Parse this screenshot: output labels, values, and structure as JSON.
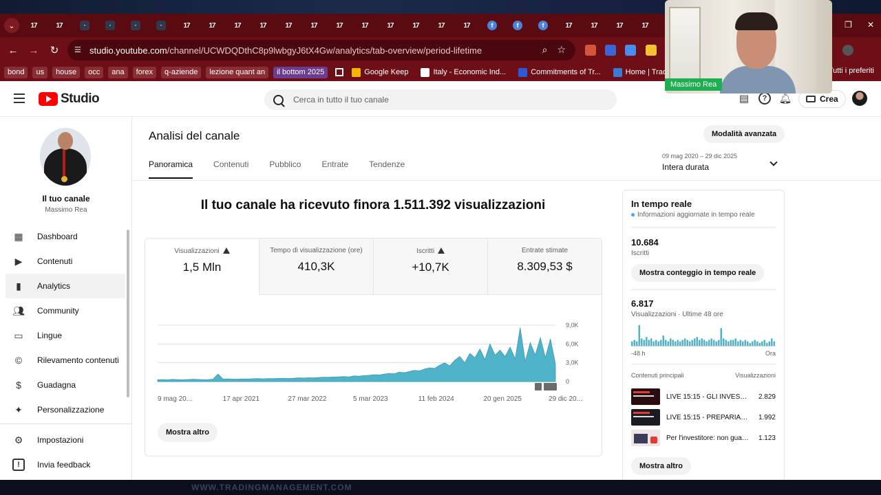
{
  "browser": {
    "url_host": "studio.youtube.com",
    "url_path": "/channel/UCWDQDthC8p9lwbgyJ6tX4Gw/analytics/tab-overview/period-lifetime",
    "bookmarks": [
      "bond",
      "us",
      "house",
      "occ",
      "ana",
      "forex",
      "q-aziende",
      "lezione quant an",
      "il bottom 2025"
    ],
    "bookmark_sites": [
      "Google Keep",
      "Italy - Economic Ind...",
      "Commitments of Tr...",
      "Home | Tradingman..."
    ],
    "bookmarks_all": "Tutti i preferiti",
    "tab_icons": [
      "tv",
      "tv",
      "an",
      "an",
      "an",
      "an",
      "tv",
      "tv",
      "tv",
      "tv",
      "tv",
      "tv",
      "tv",
      "tv",
      "tv",
      "tv",
      "tv",
      "tv",
      "fb",
      "fb",
      "fb",
      "tv",
      "tv",
      "tv",
      "tv"
    ]
  },
  "header": {
    "logo_text": "Studio",
    "search_placeholder": "Cerca in tutto il tuo canale",
    "create_label": "Crea"
  },
  "sidebar": {
    "channel_title": "Il tuo canale",
    "channel_name": "Massimo Rea",
    "items": [
      {
        "label": "Dashboard",
        "icon": "dashboard-icon"
      },
      {
        "label": "Contenuti",
        "icon": "content-icon"
      },
      {
        "label": "Analytics",
        "icon": "analytics-icon"
      },
      {
        "label": "Community",
        "icon": "community-icon"
      },
      {
        "label": "Lingue",
        "icon": "subtitles-icon"
      },
      {
        "label": "Rilevamento contenuti",
        "icon": "copyright-icon"
      },
      {
        "label": "Guadagna",
        "icon": "dollar-icon"
      },
      {
        "label": "Personalizzazione",
        "icon": "magic-wand-icon"
      }
    ],
    "footer_items": [
      {
        "label": "Impostazioni",
        "icon": "gear-icon"
      },
      {
        "label": "Invia feedback",
        "icon": "feedback-icon"
      }
    ]
  },
  "main": {
    "title": "Analisi del canale",
    "advanced_mode": "Modalità avanzata",
    "tabs": [
      "Panoramica",
      "Contenuti",
      "Pubblico",
      "Entrate",
      "Tendenze"
    ],
    "period_dates": "09 mag 2020 – 29 dic 2025",
    "period_name": "Intera durata",
    "headline": "Il tuo canale ha ricevuto finora 1.511.392 visualizzazioni",
    "stats": [
      {
        "label": "Visualizzazioni",
        "value": "1,5 Mln",
        "warning": true
      },
      {
        "label": "Tempo di visualizzazione (ore)",
        "value": "410,3K",
        "warning": false
      },
      {
        "label": "Iscritti",
        "value": "+10,7K",
        "warning": true
      },
      {
        "label": "Entrate stimate",
        "value": "8.309,53 $",
        "warning": false
      }
    ],
    "show_more": "Mostra altro"
  },
  "chart_data": {
    "type": "area",
    "series": [
      {
        "values": [
          300,
          320,
          280,
          350,
          310,
          290,
          330,
          360,
          340,
          300,
          320,
          380,
          1200,
          400,
          420,
          380,
          400,
          430,
          410,
          450,
          470,
          440,
          480,
          460,
          500,
          520,
          490,
          540,
          600,
          560,
          620,
          580,
          650,
          700,
          680,
          720,
          760,
          800,
          740,
          900,
          850,
          950,
          1000,
          1100,
          1050,
          1200,
          1300,
          1250,
          1500,
          1400,
          1600,
          1800,
          1700,
          2000,
          2200,
          2100,
          2600,
          3000,
          2500,
          3400,
          4000,
          3000,
          4500,
          3800,
          5200,
          3500,
          6000,
          4200,
          5000,
          4000,
          5500,
          3600,
          8600,
          3200,
          6200,
          4200,
          7000,
          3800,
          6800,
          2800
        ]
      }
    ],
    "x_tick_labels": [
      "9 mag 20...",
      "17 apr 2021",
      "27 mar 2022",
      "5 mar 2023",
      "11 feb 2024",
      "20 gen 2025",
      "29 dic 20..."
    ],
    "y_tick_labels": [
      "0",
      "3,0K",
      "6,0K",
      "9,0K"
    ],
    "ylim": [
      0,
      9000
    ],
    "grid": true
  },
  "realtime": {
    "title": "In tempo reale",
    "subtitle": "Informazioni aggiornate in tempo reale",
    "subscribers": "10.684",
    "subscribers_label": "Iscritti",
    "show_count": "Mostra conteggio in tempo reale",
    "views": "6.817",
    "views_label": "Visualizzazioni · Ultime 48 ore",
    "bars": [
      3,
      4,
      3,
      14,
      5,
      4,
      6,
      4,
      5,
      3,
      4,
      3,
      4,
      7,
      4,
      3,
      5,
      4,
      3,
      4,
      3,
      4,
      5,
      4,
      3,
      4,
      5,
      6,
      4,
      5,
      4,
      3,
      4,
      5,
      4,
      3,
      4,
      12,
      5,
      4,
      3,
      4,
      4,
      5,
      3,
      4,
      3,
      4,
      3,
      2,
      3,
      4,
      3,
      2,
      3,
      4,
      2,
      3,
      5,
      3
    ],
    "axis_start": "-48 h",
    "axis_end": "Ora",
    "top_content_label": "Contenuti principali",
    "views_col_label": "Visualizzazioni",
    "top_content": [
      {
        "title": "LIVE 15:15 - GLI INVESTI...",
        "views": "2.829"
      },
      {
        "title": "LIVE 15:15 - PREPARIAM...",
        "views": "1.992"
      },
      {
        "title": "Per l'investitore: non guar...",
        "views": "1.123"
      }
    ],
    "show_more": "Mostra altro"
  },
  "webcam": {
    "name": "Massimo Rea"
  },
  "colors": {
    "accent": "#ff0000",
    "chart": "#4fb3ca",
    "browser": "#6e0f18",
    "cam_label": "#1fae52"
  }
}
